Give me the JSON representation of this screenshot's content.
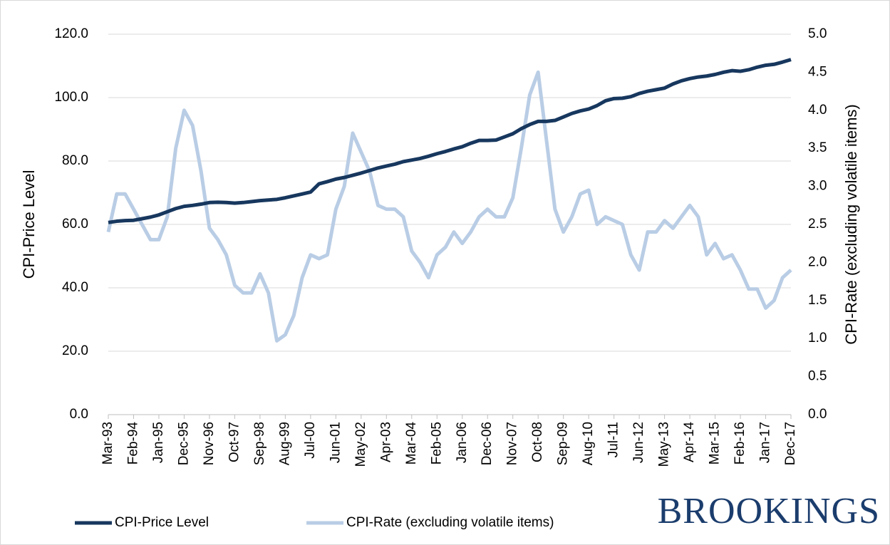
{
  "chart_data": {
    "type": "line",
    "categories": [
      "Mar-93",
      null,
      null,
      "Feb-94",
      null,
      null,
      "Jan-95",
      null,
      null,
      "Dec-95",
      null,
      null,
      "Nov-96",
      null,
      null,
      "Oct-97",
      null,
      null,
      "Sep-98",
      null,
      null,
      "Aug-99",
      null,
      null,
      "Jul-00",
      null,
      null,
      "Jun-01",
      null,
      null,
      "May-02",
      null,
      null,
      "Apr-03",
      null,
      null,
      "Mar-04",
      null,
      null,
      "Feb-05",
      null,
      null,
      "Jan-06",
      null,
      null,
      "Dec-06",
      null,
      null,
      "Nov-07",
      null,
      null,
      "Oct-08",
      null,
      null,
      "Sep-09",
      null,
      null,
      "Aug-10",
      null,
      null,
      "Jul-11",
      null,
      null,
      "Jun-12",
      null,
      null,
      "May-13",
      null,
      null,
      "Apr-14",
      null,
      null,
      "Mar-15",
      null,
      null,
      "Feb-16",
      null,
      null,
      "Jan-17",
      null,
      null,
      "Dec-17"
    ],
    "series": [
      {
        "name": "CPI-Price Level",
        "color": "#17375e",
        "axis": "y",
        "values": [
          60.6,
          61,
          61.2,
          61.3,
          61.8,
          62.3,
          63,
          64,
          65,
          65.7,
          66,
          66.4,
          66.9,
          67,
          66.9,
          66.7,
          66.9,
          67.2,
          67.5,
          67.7,
          67.9,
          68.4,
          69,
          69.6,
          70.2,
          72.8,
          73.5,
          74.3,
          74.8,
          75.5,
          76.2,
          77,
          77.8,
          78.4,
          79,
          79.8,
          80.3,
          80.8,
          81.5,
          82.3,
          83,
          83.8,
          84.5,
          85.6,
          86.5,
          86.5,
          86.6,
          87.6,
          88.6,
          90.2,
          91.5,
          92.5,
          92.5,
          92.8,
          93.9,
          95,
          95.8,
          96.4,
          97.5,
          99,
          99.7,
          99.8,
          100.3,
          101.3,
          102,
          102.5,
          103,
          104.3,
          105.3,
          106,
          106.5,
          106.8,
          107.3,
          108,
          108.5,
          108.3,
          108.8,
          109.6,
          110.2,
          110.5,
          111.2,
          112
        ]
      },
      {
        "name": "CPI-Rate (excluding volatile items)",
        "color": "#b9cde5",
        "axis": "y2",
        "values": [
          2.4,
          2.9,
          2.9,
          2.7,
          2.5,
          2.3,
          2.3,
          2.6,
          3.5,
          4.0,
          3.8,
          3.2,
          2.45,
          2.3,
          2.1,
          1.7,
          1.6,
          1.6,
          1.85,
          1.6,
          0.97,
          1.05,
          1.3,
          1.8,
          2.1,
          2.05,
          2.1,
          2.7,
          3.0,
          3.7,
          3.45,
          3.2,
          2.75,
          2.7,
          2.7,
          2.6,
          2.15,
          2.0,
          1.8,
          2.1,
          2.2,
          2.4,
          2.25,
          2.4,
          2.6,
          2.7,
          2.6,
          2.6,
          2.85,
          3.5,
          4.2,
          4.5,
          3.6,
          2.7,
          2.4,
          2.6,
          2.9,
          2.95,
          2.5,
          2.6,
          2.55,
          2.5,
          2.1,
          1.9,
          2.4,
          2.4,
          2.55,
          2.45,
          2.6,
          2.75,
          2.6,
          2.1,
          2.25,
          2.05,
          2.1,
          1.9,
          1.65,
          1.65,
          1.4,
          1.5,
          1.8,
          1.9
        ]
      }
    ],
    "y_label": "CPI-Price Level",
    "y2_label": "CPI-Rate (excluding volatile items)",
    "ylim": [
      0,
      120
    ],
    "yticks": [
      {
        "value": 0,
        "label": "0.0"
      },
      {
        "value": 20,
        "label": "20.0"
      },
      {
        "value": 40,
        "label": "40.0"
      },
      {
        "value": 60,
        "label": "60.0"
      },
      {
        "value": 80,
        "label": "80.0"
      },
      {
        "value": 100,
        "label": "100.0"
      },
      {
        "value": 120,
        "label": "120.0"
      }
    ],
    "y2lim": [
      0,
      5
    ],
    "y2ticks": [
      {
        "value": 0,
        "label": "0.0"
      },
      {
        "value": 0.5,
        "label": "0.5"
      },
      {
        "value": 1,
        "label": "1.0"
      },
      {
        "value": 1.5,
        "label": "1.5"
      },
      {
        "value": 2,
        "label": "2.0"
      },
      {
        "value": 2.5,
        "label": "2.5"
      },
      {
        "value": 3,
        "label": "3.0"
      },
      {
        "value": 3.5,
        "label": "3.5"
      },
      {
        "value": 4,
        "label": "4.0"
      },
      {
        "value": 4.5,
        "label": "4.5"
      },
      {
        "value": 5,
        "label": "5.0"
      }
    ],
    "grid": true,
    "legend": "bottom",
    "logo": "BROOKINGS"
  }
}
